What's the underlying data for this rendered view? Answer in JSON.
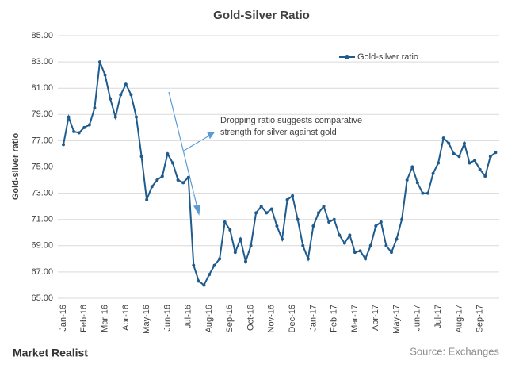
{
  "chart_data": {
    "type": "line",
    "title": "Gold-Silver Ratio",
    "ylabel": "Gold-silver ratio",
    "annotation": [
      "Dropping ratio suggests comparative",
      "strength for silver against gold"
    ],
    "source": "Source: Exchanges",
    "brand": "Market Realist",
    "categories": [
      "Jan-16",
      null,
      null,
      null,
      "Feb-16",
      null,
      null,
      null,
      "Mar-16",
      null,
      null,
      null,
      "Apr-16",
      null,
      null,
      null,
      "May-16",
      null,
      null,
      null,
      "Jun-16",
      null,
      null,
      null,
      "Jul-16",
      null,
      null,
      null,
      "Aug-16",
      null,
      null,
      null,
      "Sep-16",
      null,
      null,
      null,
      "Oct-16",
      null,
      null,
      null,
      "Nov-16",
      null,
      null,
      null,
      "Dec-16",
      null,
      null,
      null,
      "Jan-17",
      null,
      null,
      null,
      "Feb-17",
      null,
      null,
      null,
      "Mar-17",
      null,
      null,
      null,
      "Apr-17",
      null,
      null,
      null,
      "May-17",
      null,
      null,
      null,
      "Jun-17",
      null,
      null,
      null,
      "Jul-17",
      null,
      null,
      null,
      "Aug-17",
      null,
      null,
      null,
      "Sep-17",
      null,
      null,
      null
    ],
    "series": [
      {
        "name": "Gold-silver ratio",
        "color": "#1f5b8c",
        "values": [
          76.7,
          78.8,
          77.7,
          77.6,
          78.0,
          78.2,
          79.5,
          83.0,
          82.0,
          80.2,
          78.8,
          80.5,
          81.3,
          80.5,
          78.8,
          75.8,
          72.5,
          73.5,
          74.0,
          74.3,
          76.0,
          75.3,
          74.0,
          73.8,
          74.2,
          67.5,
          66.3,
          66.0,
          66.8,
          67.5,
          68.0,
          70.8,
          70.2,
          68.5,
          69.5,
          67.8,
          69.0,
          71.5,
          72.0,
          71.5,
          71.8,
          70.5,
          69.5,
          72.5,
          72.8,
          71.0,
          69.0,
          68.0,
          70.5,
          71.5,
          72.0,
          70.8,
          71.0,
          69.8,
          69.2,
          69.8,
          68.5,
          68.6,
          68.0,
          69.0,
          70.5,
          70.8,
          69.0,
          68.5,
          69.5,
          71.0,
          74.0,
          75.0,
          73.8,
          73.0,
          73.0,
          74.5,
          75.3,
          77.2,
          76.8,
          76.0,
          75.8,
          76.8,
          75.3,
          75.5,
          74.8,
          74.3,
          75.8,
          76.1
        ]
      }
    ],
    "ylim": [
      65,
      85
    ],
    "yticks": [
      {
        "value": 65,
        "label": "65.00"
      },
      {
        "value": 67,
        "label": "67.00"
      },
      {
        "value": 69,
        "label": "69.00"
      },
      {
        "value": 71,
        "label": "71.00"
      },
      {
        "value": 73,
        "label": "73.00"
      },
      {
        "value": 75,
        "label": "75.00"
      },
      {
        "value": 77,
        "label": "77.00"
      },
      {
        "value": 79,
        "label": "79.00"
      },
      {
        "value": 81,
        "label": "81.00"
      },
      {
        "value": 83,
        "label": "83.00"
      },
      {
        "value": 85,
        "label": "85.00"
      }
    ],
    "grid": true,
    "legend": "top-right"
  }
}
